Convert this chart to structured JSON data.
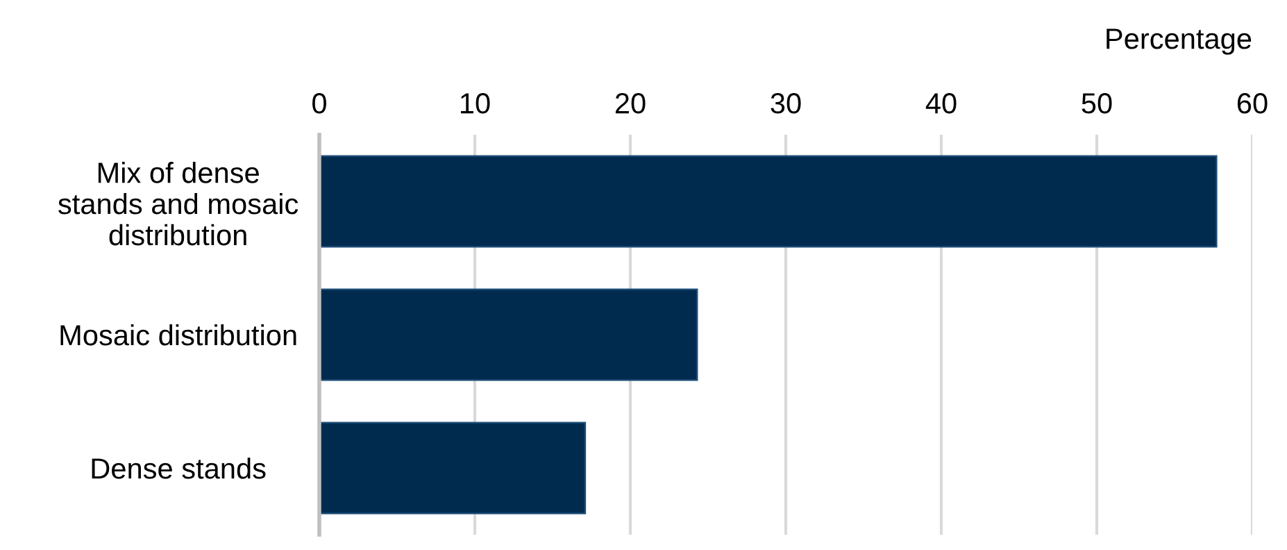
{
  "chart_data": {
    "type": "bar",
    "orientation": "horizontal",
    "xlabel": "Percentage",
    "categories": [
      "Mix of dense\nstands and mosaic\ndistribution",
      "Mosaic distribution",
      "Dense stands"
    ],
    "values": [
      57.7,
      24.3,
      17.1
    ],
    "color": "#002b4f",
    "xlim": [
      0,
      60
    ],
    "xticks": [
      0,
      10,
      20,
      30,
      40,
      50,
      60
    ],
    "grid": "x",
    "legend": false
  }
}
